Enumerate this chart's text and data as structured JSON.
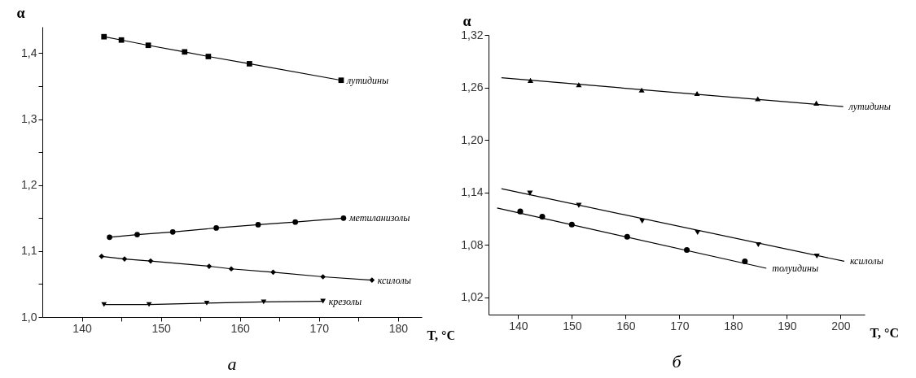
{
  "chart_data": [
    {
      "type": "line",
      "title": "а",
      "xlabel": "T, °C",
      "ylabel": "α",
      "grid": false,
      "xlim": [
        135,
        183
      ],
      "xticks": [
        140,
        {
          "value": 145,
          "label": null
        },
        150,
        {
          "value": 155,
          "label": null
        },
        160,
        {
          "value": 165,
          "label": null
        },
        170,
        {
          "value": 175,
          "label": null
        },
        180
      ],
      "ylim": [
        1.0,
        1.44
      ],
      "yticks": [
        {
          "value": 1.0,
          "label": "1,0"
        },
        {
          "value": 1.05,
          "label": null
        },
        {
          "value": 1.1,
          "label": "1,1"
        },
        {
          "value": 1.15,
          "label": null
        },
        {
          "value": 1.2,
          "label": "1,2"
        },
        {
          "value": 1.25,
          "label": null
        },
        {
          "value": 1.3,
          "label": "1,3"
        },
        {
          "value": 1.35,
          "label": null
        },
        {
          "value": 1.4,
          "label": "1,4"
        }
      ],
      "series": [
        {
          "name": "лутидины",
          "color": "#000000",
          "marker": "square",
          "x": [
            142.8,
            145.0,
            148.4,
            153.0,
            156.0,
            161.2,
            172.8
          ],
          "values": [
            1.425,
            1.42,
            1.412,
            1.402,
            1.395,
            1.384,
            1.359
          ]
        },
        {
          "name": "метиланизолы",
          "color": "#000000",
          "marker": "circle",
          "x": [
            143.5,
            147.0,
            151.5,
            157.0,
            162.3,
            167.0,
            173.1
          ],
          "values": [
            1.121,
            1.125,
            1.129,
            1.135,
            1.14,
            1.144,
            1.15
          ]
        },
        {
          "name": "ксилолы",
          "color": "#000000",
          "marker": "diamond",
          "x": [
            142.5,
            145.4,
            148.7,
            156.1,
            158.9,
            164.2,
            170.5,
            176.7
          ],
          "values": [
            1.092,
            1.088,
            1.085,
            1.077,
            1.073,
            1.068,
            1.061,
            1.056
          ]
        },
        {
          "name": "крезолы",
          "color": "#000000",
          "marker": "triangle-down",
          "x": [
            142.8,
            148.5,
            155.8,
            163.0,
            170.5
          ],
          "values": [
            1.019,
            1.019,
            1.021,
            1.023,
            1.024
          ]
        }
      ]
    },
    {
      "type": "scatter",
      "title": "б",
      "xlabel": "T, °C",
      "ylabel": "α",
      "grid": false,
      "xlim": [
        134.5,
        204.5
      ],
      "xticks": [
        140,
        150,
        160,
        170,
        180,
        190,
        200
      ],
      "ylim": [
        1.0,
        1.32
      ],
      "yticks": [
        {
          "value": 1.02,
          "label": "1,02"
        },
        {
          "value": 1.08,
          "label": "1,08"
        },
        {
          "value": 1.14,
          "label": "1,14"
        },
        {
          "value": 1.2,
          "label": "1,20"
        },
        {
          "value": 1.26,
          "label": "1,26"
        },
        {
          "value": 1.32,
          "label": "1,32"
        }
      ],
      "series": [
        {
          "color": "#000000",
          "marker": "triangle",
          "x": [
            142.3,
            151.3,
            163.0,
            173.3,
            184.6,
            195.5
          ],
          "values": [
            1.268,
            1.263,
            1.257,
            1.253,
            1.247,
            1.242
          ]
        },
        {
          "name": "лутидины",
          "type": "line",
          "color": "#000000",
          "marker": "none",
          "x": [
            136.9,
            200.5
          ],
          "values": [
            1.271,
            1.238
          ]
        },
        {
          "color": "#000000",
          "marker": "triangle-down",
          "x": [
            142.2,
            151.3,
            163.1,
            173.4,
            184.7,
            195.6
          ],
          "values": [
            1.139,
            1.125,
            1.107,
            1.094,
            1.08,
            1.067
          ]
        },
        {
          "name": "ксилолы",
          "type": "line",
          "color": "#000000",
          "marker": "none",
          "x": [
            136.9,
            200.7
          ],
          "values": [
            1.144,
            1.061
          ]
        },
        {
          "color": "#000000",
          "marker": "circle",
          "x": [
            140.4,
            144.5,
            150.0,
            160.3,
            171.4,
            182.2
          ],
          "values": [
            1.118,
            1.112,
            1.103,
            1.089,
            1.074,
            1.061
          ]
        },
        {
          "name": "толуидины",
          "type": "line",
          "color": "#000000",
          "marker": "none",
          "x": [
            136.1,
            186.2
          ],
          "values": [
            1.122,
            1.053
          ]
        }
      ]
    }
  ]
}
